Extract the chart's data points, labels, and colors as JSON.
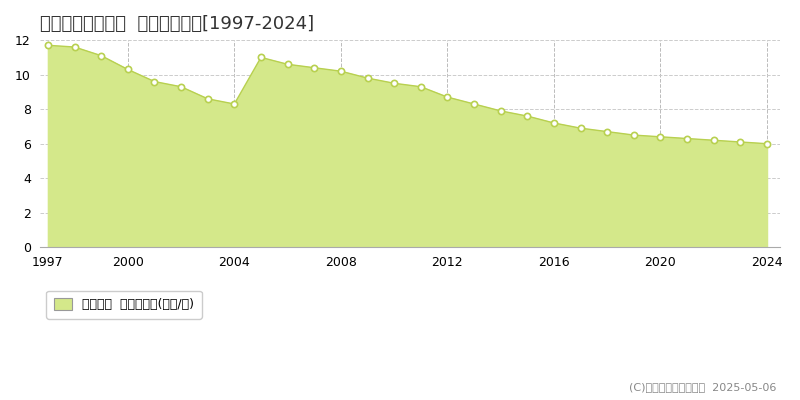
{
  "title": "多気郡大台町佐原  基準地価推移[1997-2024]",
  "years": [
    1997,
    1998,
    1999,
    2000,
    2001,
    2002,
    2003,
    2004,
    2005,
    2006,
    2007,
    2008,
    2009,
    2010,
    2011,
    2012,
    2013,
    2014,
    2015,
    2016,
    2017,
    2018,
    2019,
    2020,
    2021,
    2022,
    2023,
    2024
  ],
  "values": [
    11.7,
    11.6,
    11.1,
    10.3,
    9.6,
    9.3,
    8.6,
    8.3,
    11.0,
    10.6,
    10.4,
    10.2,
    9.8,
    9.5,
    9.3,
    8.7,
    8.3,
    7.9,
    7.6,
    7.2,
    6.9,
    6.7,
    6.5,
    6.4,
    6.3,
    6.2,
    6.1,
    6.0
  ],
  "line_color": "#b8d050",
  "fill_color": "#d4e88a",
  "marker_facecolor": "#ffffff",
  "marker_edgecolor": "#b8d050",
  "plot_bg_color": "#ffffff",
  "fig_bg_color": "#ffffff",
  "grid_color_h": "#cccccc",
  "grid_color_v": "#bbbbbb",
  "ylim": [
    0,
    12
  ],
  "yticks": [
    0,
    2,
    4,
    6,
    8,
    10,
    12
  ],
  "xticks": [
    1997,
    2000,
    2004,
    2008,
    2012,
    2016,
    2020,
    2024
  ],
  "xlim_left": 1996.7,
  "xlim_right": 2024.5,
  "legend_label": "基準地価  平均坪単価(万円/坪)",
  "copyright_text": "(C)土地価格ドットコム  2025-05-06",
  "title_fontsize": 13,
  "axis_fontsize": 9,
  "legend_fontsize": 9,
  "copyright_fontsize": 8
}
